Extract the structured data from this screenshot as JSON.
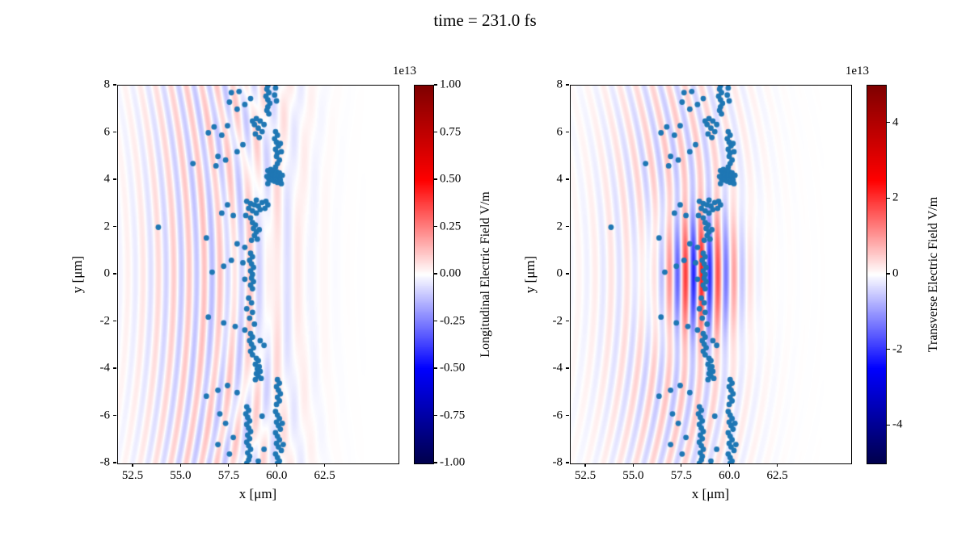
{
  "title": "time = 231.0 fs",
  "chart_data": {
    "type": "scatter+heatmap",
    "suptitle": "time = 231.0 fs",
    "xlim": [
      51.7,
      66.3
    ],
    "ylim": [
      -8,
      8
    ],
    "xtick_values": [
      52.5,
      55.0,
      57.5,
      60.0,
      62.5
    ],
    "xtick_labels": [
      "52.5",
      "55.0",
      "57.5",
      "60.0",
      "62.5"
    ],
    "ytick_values": [
      8,
      6,
      4,
      2,
      0,
      -2,
      -4,
      -6,
      -8
    ],
    "ytick_labels": [
      "8",
      "6",
      "4",
      "2",
      "0",
      "-2",
      "-4",
      "-6",
      "-8"
    ],
    "scatter_color": "#1f77b4",
    "marker_radius_px": 3.4,
    "colormap": "seismic",
    "charts": [
      {
        "name": "longitudinal-field-panel",
        "xlabel": "x [μm]",
        "ylabel": "y [μm]",
        "colorbar": {
          "label": "Longitudinal Electric Field V/m",
          "offset": "1e13",
          "vmin": -1.0,
          "vmax": 1.0,
          "tick_values": [
            1.0,
            0.75,
            0.5,
            0.25,
            0.0,
            -0.25,
            -0.5,
            -0.75,
            -1.0
          ],
          "tick_labels": [
            "1.00",
            "0.75",
            "0.50",
            "0.25",
            "0.00",
            "-0.25",
            "-0.50",
            "-0.75",
            "-1.00"
          ]
        },
        "field": {
          "description": "faint vertical wave stripes, fraction of vmax",
          "components": [
            {
              "amp": 0.12,
              "wavelength": 0.8,
              "x0": 56.0,
              "y0": 0,
              "sx": 3.2,
              "sy": 26,
              "curv": 0.015
            },
            {
              "amp": 0.06,
              "wavelength": 1.3,
              "x0": 59.5,
              "y0": 0,
              "sx": 2.5,
              "sy": 26,
              "curv": -0.012
            }
          ]
        }
      },
      {
        "name": "transverse-field-panel",
        "xlabel": "x [μm]",
        "ylabel": "y [μm]",
        "colorbar": {
          "label": "Transverse Electric Field V/m",
          "offset": "1e13",
          "vmin": -5.0,
          "vmax": 5.0,
          "tick_values": [
            4,
            2,
            0,
            -2,
            -4
          ],
          "tick_labels": [
            "4",
            "2",
            "0",
            "-2",
            "-4"
          ]
        },
        "field": {
          "description": "laser pulse wave packet centered near x=58.3, y=0, fraction of vmax",
          "components": [
            {
              "amp": 0.55,
              "wavelength": 0.85,
              "x0": 58.3,
              "y0": 0,
              "sx": 2.1,
              "sy": 3.1,
              "curv": 0.012
            },
            {
              "amp": 0.13,
              "wavelength": 0.85,
              "x0": 57.0,
              "y0": 0,
              "sx": 3.6,
              "sy": 14,
              "curv": 0.02
            }
          ]
        }
      }
    ],
    "particles": [
      [
        57.6,
        7.7
      ],
      [
        58.0,
        7.75
      ],
      [
        57.5,
        7.3
      ],
      [
        58.3,
        7.2
      ],
      [
        57.9,
        7.0
      ],
      [
        58.6,
        7.45
      ],
      [
        56.7,
        6.25
      ],
      [
        56.4,
        6.0
      ],
      [
        57.4,
        6.3
      ],
      [
        57.1,
        5.9
      ],
      [
        55.6,
        4.7
      ],
      [
        56.9,
        5.0
      ],
      [
        57.3,
        4.85
      ],
      [
        56.8,
        4.6
      ],
      [
        58.2,
        5.5
      ],
      [
        57.9,
        5.2
      ],
      [
        59.5,
        8.0
      ],
      [
        59.45,
        7.85
      ],
      [
        59.55,
        7.7
      ],
      [
        59.4,
        7.55
      ],
      [
        59.5,
        7.4
      ],
      [
        59.6,
        7.25
      ],
      [
        59.5,
        7.1
      ],
      [
        59.45,
        6.95
      ],
      [
        59.55,
        6.8
      ],
      [
        59.9,
        7.9
      ],
      [
        59.85,
        7.6
      ],
      [
        59.95,
        7.35
      ],
      [
        58.9,
        6.6
      ],
      [
        59.1,
        6.5
      ],
      [
        58.8,
        6.35
      ],
      [
        59.0,
        6.2
      ],
      [
        59.2,
        6.05
      ],
      [
        58.85,
        5.95
      ],
      [
        59.05,
        5.8
      ],
      [
        59.3,
        6.35
      ],
      [
        58.7,
        6.5
      ],
      [
        59.9,
        6.05
      ],
      [
        60.0,
        5.9
      ],
      [
        59.85,
        5.75
      ],
      [
        59.95,
        5.6
      ],
      [
        60.05,
        5.45
      ],
      [
        59.9,
        5.3
      ],
      [
        60.0,
        5.15
      ],
      [
        59.95,
        5.0
      ],
      [
        60.1,
        4.85
      ],
      [
        60.0,
        4.7
      ],
      [
        59.9,
        4.55
      ],
      [
        60.15,
        5.55
      ],
      [
        60.2,
        5.2
      ],
      [
        59.5,
        4.4
      ],
      [
        59.65,
        4.45
      ],
      [
        59.8,
        4.4
      ],
      [
        59.95,
        4.35
      ],
      [
        60.1,
        4.3
      ],
      [
        59.6,
        4.25
      ],
      [
        59.75,
        4.2
      ],
      [
        59.9,
        4.15
      ],
      [
        60.05,
        4.1
      ],
      [
        59.55,
        4.05
      ],
      [
        59.7,
        4.0
      ],
      [
        59.85,
        3.95
      ],
      [
        60.0,
        3.9
      ],
      [
        60.15,
        4.0
      ],
      [
        60.25,
        4.2
      ],
      [
        59.45,
        4.15
      ],
      [
        59.5,
        3.85
      ],
      [
        60.2,
        3.85
      ],
      [
        58.4,
        3.1
      ],
      [
        58.6,
        3.0
      ],
      [
        58.8,
        2.95
      ],
      [
        59.0,
        2.9
      ],
      [
        58.5,
        2.8
      ],
      [
        58.7,
        2.7
      ],
      [
        58.9,
        2.6
      ],
      [
        59.1,
        2.75
      ],
      [
        58.35,
        2.5
      ],
      [
        58.6,
        2.4
      ],
      [
        59.2,
        3.05
      ],
      [
        58.9,
        3.15
      ],
      [
        59.4,
        3.1
      ],
      [
        59.5,
        2.95
      ],
      [
        59.35,
        2.8
      ],
      [
        57.4,
        2.95
      ],
      [
        57.1,
        2.6
      ],
      [
        57.7,
        2.5
      ],
      [
        58.7,
        2.2
      ],
      [
        58.85,
        2.1
      ],
      [
        58.75,
        1.95
      ],
      [
        58.9,
        1.8
      ],
      [
        58.8,
        1.65
      ],
      [
        58.95,
        1.5
      ],
      [
        59.05,
        1.9
      ],
      [
        58.65,
        1.45
      ],
      [
        53.8,
        2.0
      ],
      [
        56.3,
        1.55
      ],
      [
        57.9,
        1.3
      ],
      [
        58.3,
        1.15
      ],
      [
        58.6,
        0.9
      ],
      [
        58.7,
        0.75
      ],
      [
        58.55,
        0.6
      ],
      [
        58.65,
        0.45
      ],
      [
        58.75,
        0.3
      ],
      [
        58.6,
        0.15
      ],
      [
        58.7,
        0.0
      ],
      [
        58.65,
        -0.15
      ],
      [
        58.75,
        -0.3
      ],
      [
        58.6,
        -0.45
      ],
      [
        58.7,
        -0.6
      ],
      [
        57.2,
        0.35
      ],
      [
        56.6,
        0.1
      ],
      [
        57.6,
        0.6
      ],
      [
        58.2,
        0.5
      ],
      [
        58.3,
        -0.2
      ],
      [
        58.5,
        -1.0
      ],
      [
        58.65,
        -1.2
      ],
      [
        58.4,
        -1.45
      ],
      [
        58.7,
        -1.6
      ],
      [
        56.4,
        -1.8
      ],
      [
        57.2,
        -2.05
      ],
      [
        58.55,
        -1.85
      ],
      [
        58.8,
        -2.1
      ],
      [
        57.8,
        -2.2
      ],
      [
        58.3,
        -2.35
      ],
      [
        58.6,
        -2.5
      ],
      [
        58.7,
        -2.65
      ],
      [
        58.55,
        -2.8
      ],
      [
        58.65,
        -2.95
      ],
      [
        58.75,
        -3.1
      ],
      [
        58.6,
        -3.25
      ],
      [
        58.7,
        -3.4
      ],
      [
        59.1,
        -2.8
      ],
      [
        59.3,
        -3.0
      ],
      [
        58.9,
        -3.55
      ],
      [
        59.0,
        -3.65
      ],
      [
        58.85,
        -3.8
      ],
      [
        59.05,
        -3.9
      ],
      [
        58.95,
        -4.0
      ],
      [
        59.1,
        -4.1
      ],
      [
        58.9,
        -4.2
      ],
      [
        59.0,
        -4.3
      ],
      [
        59.15,
        -4.4
      ],
      [
        58.85,
        -4.45
      ],
      [
        60.0,
        -4.45
      ],
      [
        60.1,
        -4.6
      ],
      [
        59.95,
        -4.75
      ],
      [
        60.05,
        -4.9
      ],
      [
        60.15,
        -5.05
      ],
      [
        60.0,
        -5.2
      ],
      [
        60.1,
        -5.35
      ],
      [
        59.95,
        -5.5
      ],
      [
        56.3,
        -5.15
      ],
      [
        57.9,
        -5.0
      ],
      [
        57.4,
        -4.7
      ],
      [
        56.9,
        -4.9
      ],
      [
        58.4,
        -5.6
      ],
      [
        58.5,
        -5.75
      ],
      [
        58.35,
        -5.9
      ],
      [
        58.45,
        -6.05
      ],
      [
        58.55,
        -6.2
      ],
      [
        58.4,
        -6.35
      ],
      [
        58.5,
        -6.5
      ],
      [
        58.6,
        -6.65
      ],
      [
        58.45,
        -6.8
      ],
      [
        58.55,
        -6.95
      ],
      [
        58.4,
        -7.1
      ],
      [
        58.5,
        -7.25
      ],
      [
        58.6,
        -7.4
      ],
      [
        58.45,
        -7.55
      ],
      [
        58.55,
        -7.7
      ],
      [
        58.5,
        -7.85
      ],
      [
        58.4,
        -8.0
      ],
      [
        59.9,
        -5.8
      ],
      [
        60.0,
        -5.95
      ],
      [
        60.1,
        -6.1
      ],
      [
        59.95,
        -6.25
      ],
      [
        60.05,
        -6.4
      ],
      [
        60.15,
        -6.55
      ],
      [
        59.9,
        -6.7
      ],
      [
        60.0,
        -6.85
      ],
      [
        60.1,
        -7.0
      ],
      [
        59.95,
        -7.15
      ],
      [
        60.05,
        -7.3
      ],
      [
        60.2,
        -7.45
      ],
      [
        59.9,
        -7.6
      ],
      [
        60.0,
        -7.75
      ],
      [
        60.1,
        -7.9
      ],
      [
        60.0,
        -8.0
      ],
      [
        60.25,
        -6.3
      ],
      [
        60.3,
        -7.2
      ],
      [
        57.3,
        -6.3
      ],
      [
        56.9,
        -7.2
      ],
      [
        57.7,
        -6.9
      ],
      [
        57.5,
        -7.6
      ],
      [
        59.2,
        -6.0
      ],
      [
        59.3,
        -7.4
      ],
      [
        59.0,
        -7.9
      ],
      [
        57.0,
        -5.9
      ]
    ]
  }
}
